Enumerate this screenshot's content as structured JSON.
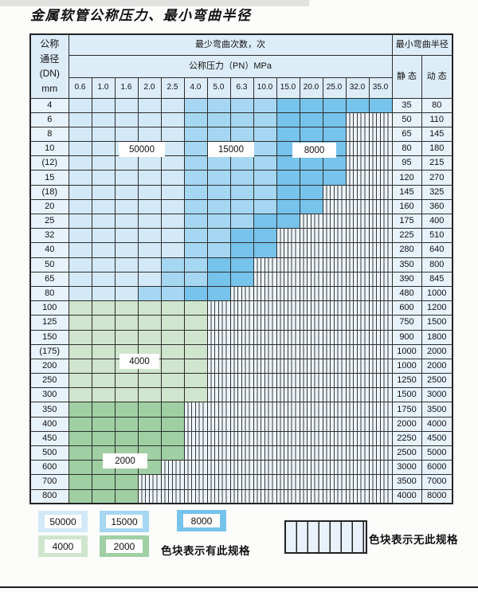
{
  "title": "金属软管公称压力、最小弯曲半径",
  "table": {
    "header": {
      "dn_lines": [
        "公称",
        "通径",
        "(DN)",
        "mm"
      ],
      "bend_cycles": "最少弯曲次数，次",
      "pressure": "公称压力（PN）MPa",
      "pressure_columns": [
        "0.6",
        "1.0",
        "1.6",
        "2.0",
        "2.5",
        "4.0",
        "5.0",
        "6.3",
        "10.0",
        "15.0",
        "20.0",
        "25.0",
        "32.0",
        "35.0"
      ],
      "radius": "最小弯曲半径",
      "static_label": "静 态",
      "dynamic_label": "动 态"
    },
    "cell_codes": {
      "l": "50000",
      "m": "15000",
      "d": "8000",
      "g": "4000",
      "G": "2000",
      "h": "no-spec"
    },
    "rows": [
      {
        "dn": "4",
        "static": "35",
        "dynamic": "80",
        "cells": "lllllmmmmddddd"
      },
      {
        "dn": "6",
        "static": "50",
        "dynamic": "110",
        "cells": "lllllmmmmdddhh"
      },
      {
        "dn": "8",
        "static": "65",
        "dynamic": "145",
        "cells": "lllllmmmmdddhh"
      },
      {
        "dn": "10",
        "static": "80",
        "dynamic": "180",
        "cells": "lllllmmmmdddhh"
      },
      {
        "dn": "(12)",
        "static": "95",
        "dynamic": "215",
        "cells": "lllllmmmmdddhh"
      },
      {
        "dn": "15",
        "static": "120",
        "dynamic": "270",
        "cells": "lllllmmmmdddhh"
      },
      {
        "dn": "(18)",
        "static": "145",
        "dynamic": "325",
        "cells": "lllllmmmmddhhh"
      },
      {
        "dn": "20",
        "static": "160",
        "dynamic": "360",
        "cells": "lllllmmmmddhhh"
      },
      {
        "dn": "25",
        "static": "175",
        "dynamic": "400",
        "cells": "lllllmmmddhhhh"
      },
      {
        "dn": "32",
        "static": "225",
        "dynamic": "510",
        "cells": "lllllmmddhhhhh"
      },
      {
        "dn": "40",
        "static": "280",
        "dynamic": "640",
        "cells": "lllllmmddhhhhh"
      },
      {
        "dn": "50",
        "static": "350",
        "dynamic": "800",
        "cells": "llllmmddhhhhhh"
      },
      {
        "dn": "65",
        "static": "390",
        "dynamic": "845",
        "cells": "llllmmddhhhhhh"
      },
      {
        "dn": "80",
        "static": "480",
        "dynamic": "1000",
        "cells": "lllmmddhhhhhhh"
      },
      {
        "dn": "100",
        "static": "600",
        "dynamic": "1200",
        "cells": "gggggghhhhhhhh"
      },
      {
        "dn": "125",
        "static": "750",
        "dynamic": "1500",
        "cells": "gggggghhhhhhhh"
      },
      {
        "dn": "150",
        "static": "900",
        "dynamic": "1800",
        "cells": "gggggghhhhhhhh"
      },
      {
        "dn": "(175)",
        "static": "1000",
        "dynamic": "2000",
        "cells": "gggggghhhhhhhh"
      },
      {
        "dn": "200",
        "static": "1000",
        "dynamic": "2000",
        "cells": "gggggghhhhhhhh"
      },
      {
        "dn": "250",
        "static": "1250",
        "dynamic": "2500",
        "cells": "gggggghhhhhhhh"
      },
      {
        "dn": "300",
        "static": "1500",
        "dynamic": "3000",
        "cells": "gggggghhhhhhhh"
      },
      {
        "dn": "350",
        "static": "1750",
        "dynamic": "3500",
        "cells": "GGGGGhhhhhhhhh"
      },
      {
        "dn": "400",
        "static": "2000",
        "dynamic": "4000",
        "cells": "GGGGGhhhhhhhhh"
      },
      {
        "dn": "450",
        "static": "2250",
        "dynamic": "4500",
        "cells": "GGGGGhhhhhhhhh"
      },
      {
        "dn": "500",
        "static": "2500",
        "dynamic": "5000",
        "cells": "GGGGGhhhhhhhhh"
      },
      {
        "dn": "600",
        "static": "3000",
        "dynamic": "6000",
        "cells": "GGGGhhhhhhhhhh"
      },
      {
        "dn": "700",
        "static": "3500",
        "dynamic": "7000",
        "cells": "GGGhhhhhhhhhhh"
      },
      {
        "dn": "800",
        "static": "4000",
        "dynamic": "8000",
        "cells": "GGGhhhhhhhhhhh"
      }
    ],
    "overlays": [
      {
        "label": "50000"
      },
      {
        "label": "15000"
      },
      {
        "label": "8000"
      },
      {
        "label": "4000"
      },
      {
        "label": "2000"
      }
    ]
  },
  "legend": {
    "items": [
      {
        "label": "50000"
      },
      {
        "label": "15000"
      },
      {
        "label": "8000"
      },
      {
        "label": "4000"
      },
      {
        "label": "2000"
      }
    ],
    "has_spec": "色块表示有此规格",
    "no_spec": "色块表示无此规格"
  },
  "colors": {
    "blue_50000": "#d3e9f8",
    "blue_15000": "#a6d7f2",
    "blue_8000": "#76c3eb",
    "green_4000": "#d0e5cd",
    "green_2000": "#a0cfa3",
    "hatch_bg": "#edf4fb",
    "label_bg": "#e8f2fb",
    "header_bg": "#ddedf8",
    "border": "#2d2d2d"
  }
}
